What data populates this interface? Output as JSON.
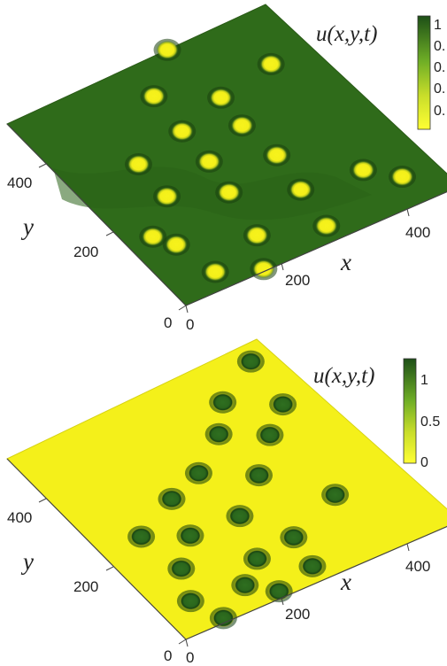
{
  "panels": [
    {
      "id": "top",
      "colorbar": {
        "title": "u(x,y,t)",
        "ticks": [
          "1",
          "0.",
          "0.",
          "0.",
          "0."
        ]
      },
      "x_axis": {
        "label": "x",
        "ticks": [
          "0",
          "200",
          "400"
        ]
      },
      "y_axis": {
        "label": "y",
        "ticks": [
          "0",
          "200",
          "400"
        ]
      },
      "colors": {
        "background": "#2f6b1a",
        "spot": "#f4f01a",
        "spot_halo": "#1a3f0f"
      },
      "spots": [
        [
          0.0,
          0.62
        ],
        [
          0.15,
          0.46
        ],
        [
          0.23,
          0.85
        ],
        [
          0.27,
          0.63
        ],
        [
          0.33,
          0.44
        ],
        [
          0.41,
          0.61
        ],
        [
          0.38,
          0.24
        ],
        [
          0.55,
          0.23
        ],
        [
          0.49,
          0.43
        ],
        [
          0.58,
          0.62
        ],
        [
          0.64,
          0.4
        ],
        [
          0.78,
          0.8
        ],
        [
          0.75,
          0.59
        ],
        [
          0.87,
          0.88
        ],
        [
          0.85,
          0.36
        ],
        [
          0.75,
          0.13
        ],
        [
          0.68,
          0.09
        ],
        [
          0.99,
          0.29
        ],
        [
          0.92,
          0.16
        ],
        [
          0.93,
          0.56
        ]
      ]
    },
    {
      "id": "bottom",
      "colorbar": {
        "title": "u(x,y,t)",
        "ticks": [
          "1",
          "0.5",
          "0"
        ]
      },
      "x_axis": {
        "label": "x",
        "ticks": [
          "0",
          "200",
          "400"
        ]
      },
      "y_axis": {
        "label": "y",
        "ticks": [
          "0",
          "200",
          "400"
        ]
      },
      "colors": {
        "background": "#f4f01a",
        "spot": "#2c6a1c",
        "spot_halo": "#0f3a0c"
      },
      "spots": [
        [
          0.07,
          0.92
        ],
        [
          0.17,
          0.73
        ],
        [
          0.28,
          0.88
        ],
        [
          0.28,
          0.63
        ],
        [
          0.37,
          0.76
        ],
        [
          0.39,
          0.47
        ],
        [
          0.44,
          0.33
        ],
        [
          0.5,
          0.62
        ],
        [
          0.53,
          0.15
        ],
        [
          0.61,
          0.28
        ],
        [
          0.62,
          0.46
        ],
        [
          0.72,
          0.17
        ],
        [
          0.7,
          0.76
        ],
        [
          0.79,
          0.54
        ],
        [
          0.81,
          0.39
        ],
        [
          0.86,
          0.11
        ],
        [
          0.89,
          0.29
        ],
        [
          0.93,
          0.51
        ],
        [
          0.97,
          0.36
        ],
        [
          0.98,
          0.15
        ]
      ]
    }
  ]
}
